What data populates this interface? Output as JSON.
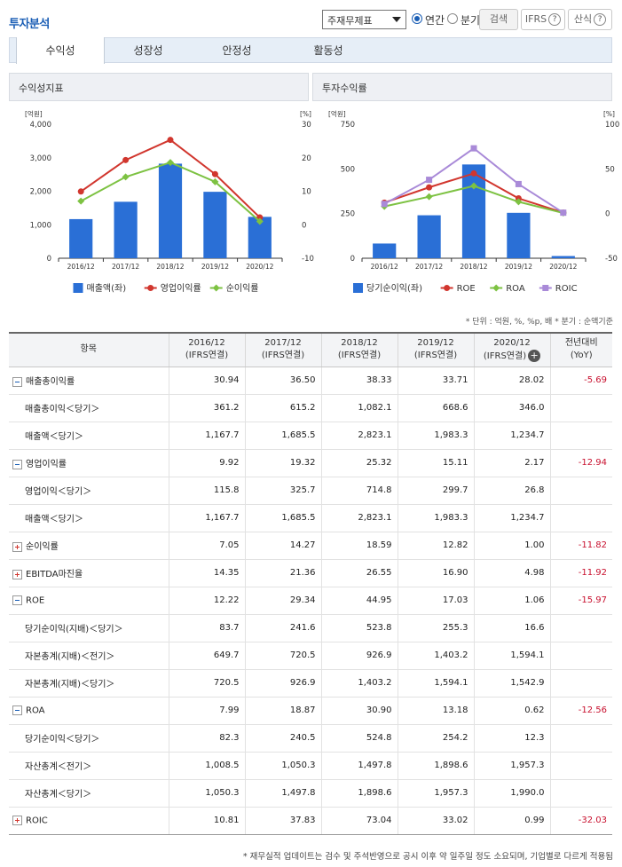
{
  "header": {
    "title": "투자분석",
    "select_value": "주재무제표",
    "radio_annual": "연간",
    "radio_quarter": "분기",
    "search_label": "검색",
    "ifrs_label": "IFRS",
    "formula_label": "산식"
  },
  "tabs": [
    "수익성",
    "성장성",
    "안정성",
    "활동성"
  ],
  "charts": {
    "left_title": "수익성지표",
    "right_title": "투자수익률"
  },
  "chart_data": [
    {
      "type": "bar+line",
      "title": "수익성지표",
      "categories": [
        "2016/12",
        "2017/12",
        "2018/12",
        "2019/12",
        "2020/12"
      ],
      "left_unit": "[억원]",
      "right_unit": "[%]",
      "left_ylim": [
        0,
        4000
      ],
      "left_ticks": [
        "0",
        "1,000",
        "2,000",
        "3,000",
        "4,000"
      ],
      "right_ylim": [
        -10,
        30
      ],
      "right_ticks": [
        "-10",
        "0",
        "10",
        "20",
        "30"
      ],
      "series": [
        {
          "name": "매출액(좌)",
          "kind": "bar",
          "axis": "left",
          "color": "#2a6fd6",
          "values": [
            1167.7,
            1685.5,
            2823.1,
            1983.3,
            1234.7
          ]
        },
        {
          "name": "영업이익률",
          "kind": "line",
          "axis": "right",
          "color": "#d1362e",
          "values": [
            9.92,
            19.32,
            25.32,
            15.11,
            2.17
          ]
        },
        {
          "name": "순이익률",
          "kind": "line",
          "axis": "right",
          "color": "#7dc242",
          "values": [
            7.05,
            14.27,
            18.59,
            12.82,
            1.0
          ]
        }
      ]
    },
    {
      "type": "bar+line",
      "title": "투자수익률",
      "categories": [
        "2016/12",
        "2017/12",
        "2018/12",
        "2019/12",
        "2020/12"
      ],
      "left_unit": "[억원]",
      "right_unit": "[%]",
      "left_ylim": [
        0,
        750
      ],
      "left_ticks": [
        "0",
        "250",
        "500",
        "750"
      ],
      "right_ylim": [
        -50,
        100
      ],
      "right_ticks": [
        "-50",
        "0",
        "50",
        "100"
      ],
      "series": [
        {
          "name": "당기순이익(좌)",
          "kind": "bar",
          "axis": "left",
          "color": "#2a6fd6",
          "values": [
            82.3,
            240.5,
            524.8,
            254.2,
            12.3
          ]
        },
        {
          "name": "ROE",
          "kind": "line",
          "axis": "right",
          "color": "#d1362e",
          "values": [
            12.22,
            29.34,
            44.95,
            17.03,
            1.06
          ]
        },
        {
          "name": "ROA",
          "kind": "line",
          "axis": "right",
          "color": "#7dc242",
          "values": [
            7.99,
            18.87,
            30.9,
            13.18,
            0.62
          ]
        },
        {
          "name": "ROIC",
          "kind": "line",
          "axis": "right",
          "color": "#a98ad8",
          "values": [
            10.81,
            37.83,
            73.04,
            33.02,
            0.99
          ]
        }
      ]
    }
  ],
  "unit_note": "* 단위 : 억원, %, %p, 배   * 분기 : 순액기준",
  "table": {
    "headers": [
      {
        "l1": "항목",
        "l2": ""
      },
      {
        "l1": "2016/12",
        "l2": "(IFRS연결)"
      },
      {
        "l1": "2017/12",
        "l2": "(IFRS연결)"
      },
      {
        "l1": "2018/12",
        "l2": "(IFRS연결)"
      },
      {
        "l1": "2019/12",
        "l2": "(IFRS연결)"
      },
      {
        "l1": "2020/12",
        "l2": "(IFRS연결)"
      },
      {
        "l1": "전년대비",
        "l2": "(YoY)"
      }
    ],
    "rows": [
      {
        "label": "매출총이익률",
        "toggle": "minus",
        "values": [
          "30.94",
          "36.50",
          "38.33",
          "33.71",
          "28.02"
        ],
        "yoy": "-5.69"
      },
      {
        "label": "매출총이익＜당기＞",
        "values": [
          "361.2",
          "615.2",
          "1,082.1",
          "668.6",
          "346.0"
        ],
        "yoy": ""
      },
      {
        "label": "매출액＜당기＞",
        "values": [
          "1,167.7",
          "1,685.5",
          "2,823.1",
          "1,983.3",
          "1,234.7"
        ],
        "yoy": ""
      },
      {
        "label": "영업이익률",
        "toggle": "minus",
        "values": [
          "9.92",
          "19.32",
          "25.32",
          "15.11",
          "2.17"
        ],
        "yoy": "-12.94"
      },
      {
        "label": "영업이익＜당기＞",
        "values": [
          "115.8",
          "325.7",
          "714.8",
          "299.7",
          "26.8"
        ],
        "yoy": ""
      },
      {
        "label": "매출액＜당기＞",
        "values": [
          "1,167.7",
          "1,685.5",
          "2,823.1",
          "1,983.3",
          "1,234.7"
        ],
        "yoy": ""
      },
      {
        "label": "순이익률",
        "toggle": "plus",
        "values": [
          "7.05",
          "14.27",
          "18.59",
          "12.82",
          "1.00"
        ],
        "yoy": "-11.82"
      },
      {
        "label": "EBITDA마진율",
        "toggle": "plus",
        "values": [
          "14.35",
          "21.36",
          "26.55",
          "16.90",
          "4.98"
        ],
        "yoy": "-11.92"
      },
      {
        "label": "ROE",
        "toggle": "minus",
        "values": [
          "12.22",
          "29.34",
          "44.95",
          "17.03",
          "1.06"
        ],
        "yoy": "-15.97"
      },
      {
        "label": "당기순이익(지배)＜당기＞",
        "values": [
          "83.7",
          "241.6",
          "523.8",
          "255.3",
          "16.6"
        ],
        "yoy": ""
      },
      {
        "label": "자본총계(지배)＜전기＞",
        "values": [
          "649.7",
          "720.5",
          "926.9",
          "1,403.2",
          "1,594.1"
        ],
        "yoy": ""
      },
      {
        "label": "자본총계(지배)＜당기＞",
        "values": [
          "720.5",
          "926.9",
          "1,403.2",
          "1,594.1",
          "1,542.9"
        ],
        "yoy": ""
      },
      {
        "label": "ROA",
        "toggle": "minus",
        "values": [
          "7.99",
          "18.87",
          "30.90",
          "13.18",
          "0.62"
        ],
        "yoy": "-12.56"
      },
      {
        "label": "당기순이익＜당기＞",
        "values": [
          "82.3",
          "240.5",
          "524.8",
          "254.2",
          "12.3"
        ],
        "yoy": ""
      },
      {
        "label": "자산총계＜전기＞",
        "values": [
          "1,008.5",
          "1,050.3",
          "1,497.8",
          "1,898.6",
          "1,957.3"
        ],
        "yoy": ""
      },
      {
        "label": "자산총계＜당기＞",
        "values": [
          "1,050.3",
          "1,497.8",
          "1,898.6",
          "1,957.3",
          "1,990.0"
        ],
        "yoy": ""
      },
      {
        "label": "ROIC",
        "toggle": "plus",
        "values": [
          "10.81",
          "37.83",
          "73.04",
          "33.02",
          "0.99"
        ],
        "yoy": "-32.03"
      }
    ]
  },
  "footnote": "* 재무실적 업데이트는 검수 및 주석반영으로 공시 이후 약 일주일 정도 소요되며, 기업별로 다르게 적용됨"
}
